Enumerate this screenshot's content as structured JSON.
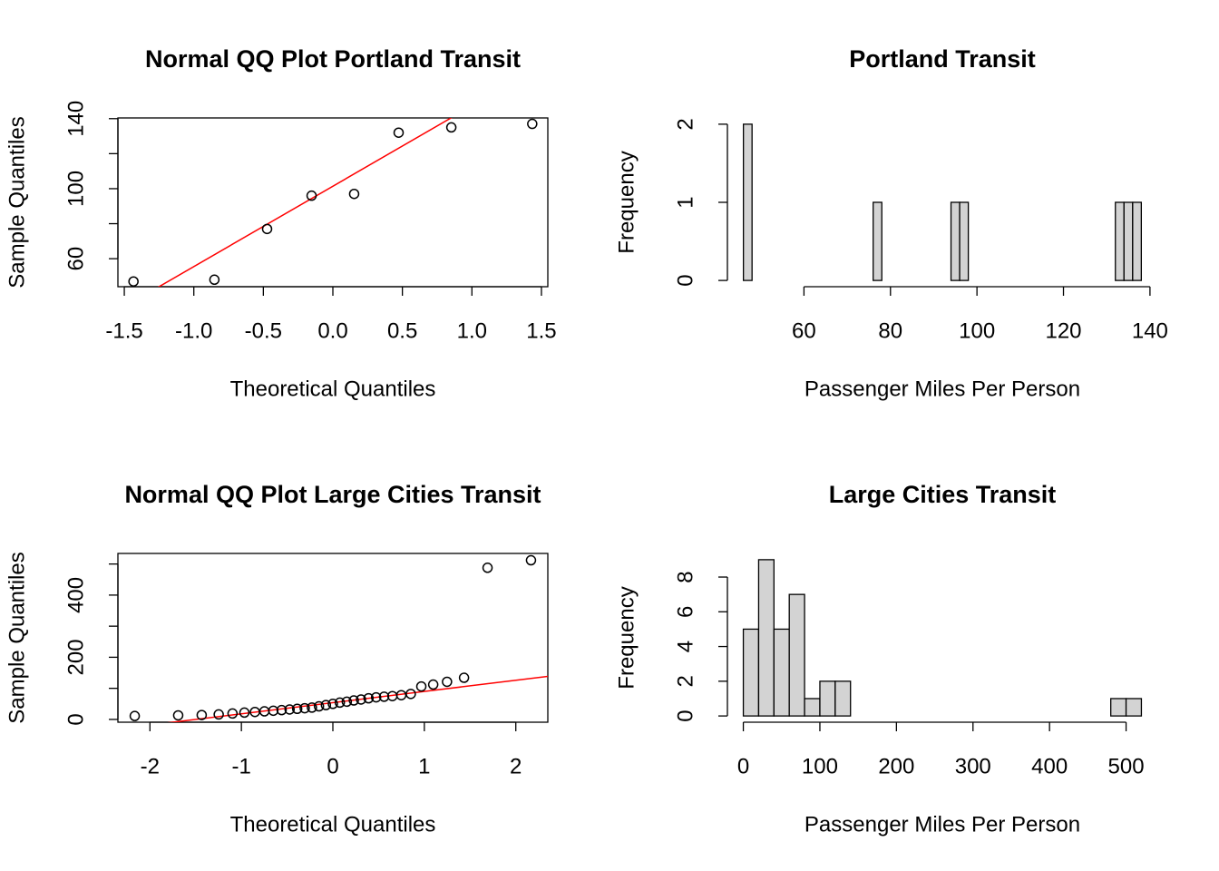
{
  "chart_data": [
    {
      "type": "qq",
      "title": "Normal QQ Plot Portland Transit",
      "xlabel": "Theoretical Quantiles",
      "ylabel": "Sample Quantiles",
      "x": [
        -1.434,
        -0.852,
        -0.473,
        -0.153,
        0.153,
        0.473,
        0.852,
        1.434
      ],
      "values": [
        47,
        48,
        77,
        96,
        97,
        132,
        135,
        137
      ],
      "xlim": [
        -1.546,
        1.546
      ],
      "ylim": [
        44,
        140.4
      ],
      "xticks": [
        -1.5,
        {
          "value": -1,
          "label": "-1.0"
        },
        -0.5,
        {
          "value": 0,
          "label": "0.0"
        },
        0.5,
        {
          "value": 1,
          "label": "1.0"
        },
        1.5
      ],
      "yticks": [
        60,
        {
          "value": 80,
          "label": null
        },
        100,
        {
          "value": 120,
          "label": null
        },
        140
      ],
      "color": "#000000",
      "reference_line": {
        "intercept": 101.4,
        "slope": 45.9,
        "color": "#ff0000"
      }
    },
    {
      "type": "histogram",
      "title": "Portland Transit",
      "xlabel": "Passenger Miles Per Person",
      "ylabel": "Frequency",
      "bins": [
        46,
        48,
        50,
        52,
        54,
        56,
        58,
        60,
        62,
        64,
        66,
        68,
        70,
        72,
        74,
        76,
        78,
        80,
        82,
        84,
        86,
        88,
        90,
        92,
        94,
        96,
        98,
        100,
        102,
        104,
        106,
        108,
        110,
        112,
        114,
        116,
        118,
        120,
        122,
        124,
        126,
        128,
        130,
        132,
        134,
        136,
        138
      ],
      "values": [
        2,
        0,
        0,
        0,
        0,
        0,
        0,
        0,
        0,
        0,
        0,
        0,
        0,
        0,
        0,
        1,
        0,
        0,
        0,
        0,
        0,
        0,
        0,
        0,
        1,
        1,
        0,
        0,
        0,
        0,
        0,
        0,
        0,
        0,
        0,
        0,
        0,
        0,
        0,
        0,
        0,
        0,
        0,
        1,
        1,
        1
      ],
      "color": "#d3d3d3",
      "xlim": [
        42.3,
        141.7
      ],
      "ylim": [
        -0.08,
        2.08
      ],
      "xticks": [
        60,
        80,
        100,
        120,
        140
      ],
      "yticks": [
        0,
        1,
        2
      ]
    },
    {
      "type": "qq",
      "title": "Normal QQ Plot Large Cities Transit",
      "xlabel": "Theoretical Quantiles",
      "ylabel": "Sample Quantiles",
      "x": [
        -2.166,
        -1.691,
        -1.434,
        -1.248,
        -1.097,
        -0.967,
        -0.852,
        -0.748,
        -0.651,
        -0.56,
        -0.473,
        -0.39,
        -0.308,
        -0.229,
        -0.152,
        -0.076,
        0,
        0.076,
        0.152,
        0.229,
        0.308,
        0.39,
        0.473,
        0.56,
        0.651,
        0.748,
        0.852,
        0.967,
        1.097,
        1.248,
        1.434,
        1.691,
        2.166
      ],
      "values": [
        11,
        13,
        14,
        16,
        19,
        22,
        24,
        26,
        28,
        30,
        32,
        34,
        36,
        38,
        42,
        46,
        50,
        54,
        57,
        61,
        64,
        68,
        71,
        73,
        75,
        78,
        82,
        106,
        112,
        121,
        134,
        488,
        512
      ],
      "xlim": [
        -2.35,
        2.35
      ],
      "ylim": [
        -9,
        534
      ],
      "xticks": [
        -2,
        -1,
        0,
        1,
        2
      ],
      "yticks": [
        0,
        {
          "value": 100,
          "label": null
        },
        200,
        {
          "value": 300,
          "label": null
        },
        400,
        {
          "value": 500,
          "label": null
        }
      ],
      "color": "#000000",
      "reference_line": {
        "intercept": 54,
        "slope": 36,
        "color": "#ff0000"
      }
    },
    {
      "type": "histogram",
      "title": "Large Cities Transit",
      "xlabel": "Passenger Miles Per Person",
      "ylabel": "Frequency",
      "bins": [
        0,
        20,
        40,
        60,
        80,
        100,
        120,
        140,
        160,
        180,
        200,
        220,
        240,
        260,
        280,
        300,
        320,
        340,
        360,
        380,
        400,
        420,
        440,
        460,
        480,
        500,
        520
      ],
      "values": [
        5,
        9,
        5,
        7,
        1,
        2,
        2,
        0,
        0,
        0,
        0,
        0,
        0,
        0,
        0,
        0,
        0,
        0,
        0,
        0,
        0,
        0,
        0,
        0,
        1,
        1
      ],
      "color": "#d3d3d3",
      "xlim": [
        -20.8,
        540.8
      ],
      "ylim": [
        -0.36,
        9.36
      ],
      "xticks": [
        0,
        100,
        200,
        300,
        400,
        500
      ],
      "yticks": [
        0,
        2,
        4,
        6,
        8
      ]
    }
  ]
}
